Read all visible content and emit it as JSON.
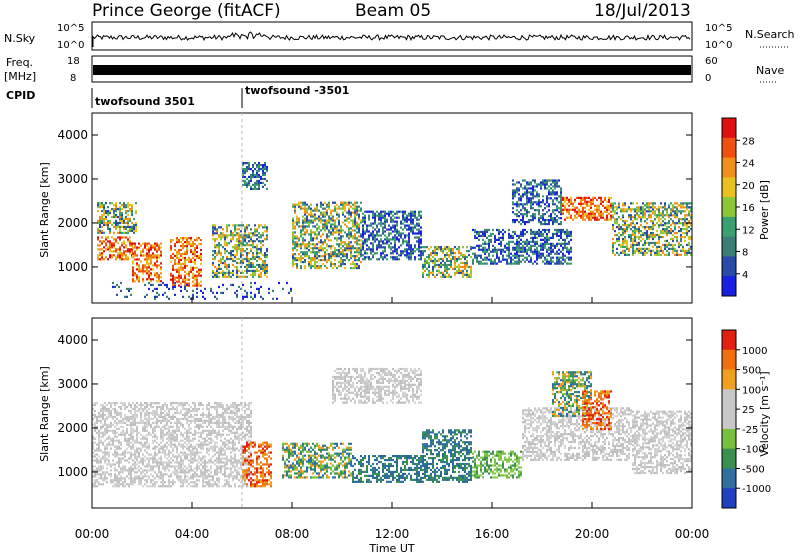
{
  "header": {
    "station": "Prince George (fitACF)",
    "beam": "Beam 05",
    "date": "18/Jul/2013"
  },
  "strips": {
    "nsky_label": "N.Sky",
    "nsky_ticks": [
      "10^5",
      "10^0"
    ],
    "nsearch_label": "N.Search",
    "nsearch_ticks": [
      "10^5",
      "10^0"
    ],
    "freq_label_1": "Freq.",
    "freq_label_2": "[MHz]",
    "freq_ticks": [
      "18",
      "8"
    ],
    "nave_label": "Nave",
    "nave_ticks": [
      "60",
      "0"
    ],
    "cpid_label": "CPID",
    "cpid_segments": [
      "twofsound 3501",
      "twofsound -3501"
    ]
  },
  "chart_data": [
    {
      "type": "heatmap",
      "name": "power",
      "ylabel": "Slant Range [km]",
      "yticks": [
        "4000",
        "3000",
        "2000",
        "1000"
      ],
      "ylim": [
        180,
        4500
      ],
      "colorbar_label": "Power [dB]",
      "colorbar_ticks": [
        "28",
        "24",
        "20",
        "16",
        "12",
        "8",
        "4"
      ],
      "colors": [
        "#1a20e0",
        "#2a4aa8",
        "#3a7e78",
        "#3aa070",
        "#8ac838",
        "#e8c020",
        "#f09018",
        "#f05010",
        "#e01010"
      ]
    },
    {
      "type": "heatmap",
      "name": "velocity",
      "ylabel": "Slant Range [km]",
      "yticks": [
        "4000",
        "3000",
        "2000",
        "1000"
      ],
      "ylim": [
        180,
        4500
      ],
      "colorbar_label": "Velocity [m s⁻¹]",
      "colorbar_ticks": [
        "1000",
        "500",
        "100",
        "25",
        "-25",
        "-100",
        "-500",
        "-1000"
      ],
      "colors": [
        "#2040c0",
        "#3070a0",
        "#3a9050",
        "#78c040",
        "#c8c8c8",
        "#c8c8c8",
        "#f0a020",
        "#f07010",
        "#e02010"
      ]
    }
  ],
  "time_axis": {
    "label": "Time UT",
    "ticks": [
      "00:00",
      "04:00",
      "08:00",
      "12:00",
      "16:00",
      "20:00",
      "00:00"
    ]
  }
}
